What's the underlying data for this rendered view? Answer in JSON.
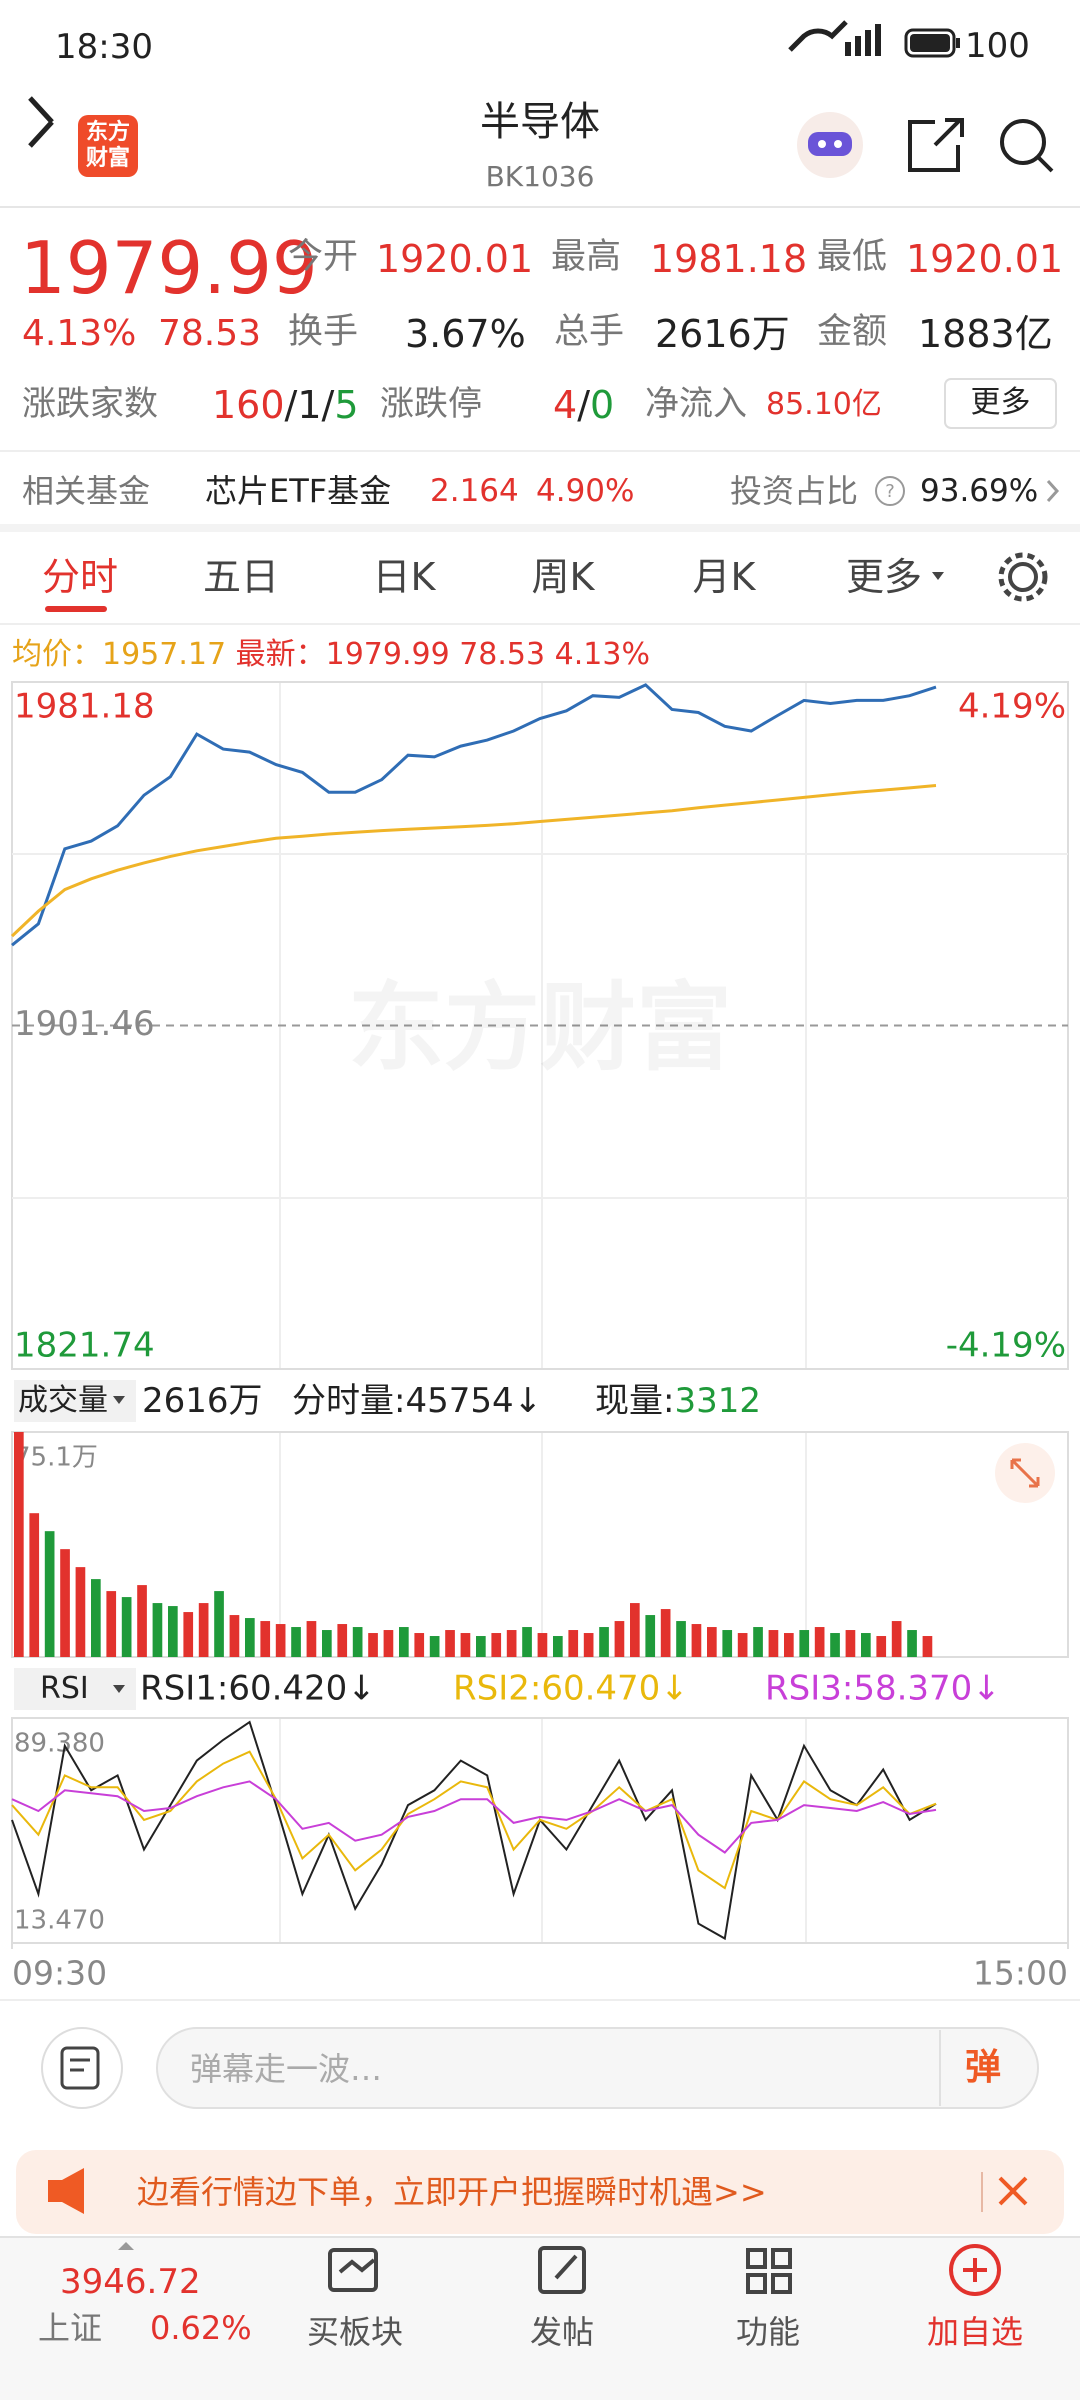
{
  "status": {
    "time": "18:30",
    "battery": "100"
  },
  "header": {
    "logo": [
      "东方",
      "财富"
    ],
    "title": "半导体",
    "code": "BK1036"
  },
  "quote": {
    "price": "1979.99",
    "change_pct": "4.13%",
    "change": "78.53",
    "fields": [
      {
        "label": "今开",
        "value": "1920.01"
      },
      {
        "label": "最高",
        "value": "1981.18"
      },
      {
        "label": "最低",
        "value": "1920.01"
      },
      {
        "label": "换手",
        "value": "3.67%"
      },
      {
        "label": "总手",
        "value": "2616万"
      },
      {
        "label": "金额",
        "value": "1883亿"
      }
    ]
  },
  "breadth": {
    "label": "涨跌家数",
    "up": "160",
    "sep": "/",
    "flat": "1",
    "down": "5",
    "limit_label": "涨跌停",
    "limit_up": "4",
    "limit_down": "0",
    "inflow_label": "净流入",
    "inflow": "85.10亿",
    "more": "更多"
  },
  "fund": {
    "label": "相关基金",
    "name": "芯片ETF基金",
    "price": "2.164",
    "pct": "4.90%",
    "ratio_label": "投资占比",
    "ratio": "93.69%"
  },
  "tabs": [
    "分时",
    "五日",
    "日K",
    "周K",
    "月K",
    "更多"
  ],
  "legend": {
    "avg_label": "均价：",
    "avg": "1957.17",
    "latest_label": "最新：",
    "latest": "1979.99",
    "change": "78.53",
    "pct": "4.13%"
  },
  "watermark": "东方财富",
  "volume_bar": {
    "selector": "成交量",
    "total": "2616万",
    "minute": "分时量:45754↓",
    "current_label": "现量:",
    "current": "3312"
  },
  "rsi_bar": {
    "selector": "RSI"
  },
  "chart_data": [
    {
      "type": "line",
      "xlim": [
        0,
        240
      ],
      "ylim": [
        1821.74,
        1981.18
      ],
      "yticks": [
        1821.74,
        1901.46,
        1981.18
      ],
      "y2lim": [
        -4.19,
        4.19
      ],
      "y2ticks": [
        {
          "value": -4.19,
          "label": "-4.19%"
        },
        {
          "value": 4.19,
          "label": "4.19%"
        }
      ],
      "x": [
        0,
        6,
        12,
        18,
        24,
        30,
        36,
        42,
        48,
        54,
        60,
        66,
        72,
        78,
        84,
        90,
        96,
        102,
        108,
        114,
        120,
        126,
        132,
        138,
        144,
        150,
        156,
        162,
        168,
        174,
        180,
        186,
        192,
        198,
        204,
        210
      ],
      "series": [
        {
          "color": "#2f6db5",
          "values": [
            1920.1,
            1925.07,
            1942.47,
            1944.25,
            1947.8,
            1954.9,
            1959.2,
            1969.1,
            1965.6,
            1964.9,
            1962,
            1960.2,
            1955.6,
            1955.6,
            1958.5,
            1964.2,
            1963.8,
            1966.3,
            1967.7,
            1969.8,
            1972.7,
            1974.5,
            1978,
            1977.6,
            1980.5,
            1974.8,
            1974.1,
            1970.9,
            1969.8,
            1973.4,
            1976.9,
            1976.2,
            1976.9,
            1976.9,
            1978,
            1979.99
          ]
        },
        {
          "color": "#f0b428",
          "values": [
            1922.2,
            1928,
            1933,
            1935.5,
            1937.5,
            1939.2,
            1940.7,
            1942,
            1943,
            1944,
            1944.9,
            1945.4,
            1945.9,
            1946.3,
            1946.7,
            1947,
            1947.3,
            1947.6,
            1947.9,
            1948.3,
            1948.8,
            1949.3,
            1949.8,
            1950.3,
            1950.8,
            1951.3,
            1952,
            1952.6,
            1953.2,
            1953.8,
            1954.4,
            1955,
            1955.6,
            1956.1,
            1956.6,
            1957.17
          ]
        }
      ]
    },
    {
      "type": "bar",
      "xlim": [
        0,
        240
      ],
      "ylim": [
        0,
        75.1
      ],
      "yticks": [
        {
          "value": 75.1,
          "label": "75.1万"
        }
      ],
      "x": [
        0,
        3.5,
        7,
        10.5,
        14,
        17.5,
        21,
        24.5,
        28,
        31.5,
        35,
        38.5,
        42,
        45.5,
        49,
        52.5,
        56,
        59.5,
        63,
        66.5,
        70,
        73.5,
        77,
        80.5,
        84,
        87.5,
        91,
        94.5,
        98,
        101.5,
        105,
        108.5,
        112,
        115.5,
        119,
        122.5,
        126,
        129.5,
        133,
        136.5,
        140,
        143.5,
        147,
        150.5,
        154,
        157.5,
        161,
        164.5,
        168,
        171.5,
        175,
        178.5,
        182,
        185.5,
        189,
        192.5,
        196,
        199.5,
        203,
        206.5
      ],
      "values": [
        75.1,
        48,
        42,
        36,
        30,
        26,
        22,
        20,
        24,
        18,
        17,
        15,
        18,
        22,
        14,
        13,
        12,
        11,
        10,
        12,
        9,
        11,
        10,
        8,
        9,
        10,
        8,
        7,
        9,
        8,
        7,
        8,
        9,
        10,
        8,
        7,
        9,
        8,
        10,
        12,
        18,
        14,
        16,
        12,
        11,
        10,
        9,
        8,
        10,
        9,
        8,
        9,
        10,
        8,
        9,
        8,
        7,
        12,
        9,
        7
      ],
      "up": [
        true,
        true,
        false,
        true,
        true,
        false,
        true,
        false,
        true,
        false,
        false,
        true,
        true,
        false,
        true,
        false,
        true,
        true,
        false,
        true,
        false,
        true,
        false,
        true,
        true,
        false,
        true,
        false,
        true,
        true,
        false,
        true,
        true,
        false,
        true,
        false,
        true,
        true,
        false,
        true,
        true,
        false,
        true,
        false,
        true,
        true,
        false,
        true,
        false,
        true,
        true,
        false,
        true,
        false,
        true,
        false,
        true,
        true,
        false,
        true
      ],
      "color_up": "#e2322d",
      "color_down": "#1f9a3a"
    },
    {
      "type": "line",
      "xlim": [
        0,
        240
      ],
      "xticks": [
        {
          "value": 0,
          "label": "09:30"
        },
        {
          "value": 240,
          "label": "15:00"
        }
      ],
      "ylim": [
        13.47,
        89.38
      ],
      "yticks": [
        {
          "value": 13.47,
          "label": "13.470"
        },
        {
          "value": 89.38,
          "label": "89.380"
        }
      ],
      "x": [
        0,
        6,
        12,
        18,
        24,
        30,
        36,
        42,
        48,
        54,
        60,
        66,
        72,
        78,
        84,
        90,
        96,
        102,
        108,
        114,
        120,
        126,
        132,
        138,
        144,
        150,
        156,
        162,
        168,
        174,
        180,
        186,
        192,
        198,
        204,
        210
      ],
      "series": [
        {
          "name": "RSI1:60.420↓",
          "color": "#222222",
          "values": [
            55,
            30,
            80,
            65,
            70,
            45,
            60,
            75,
            82,
            88,
            60,
            30,
            50,
            25,
            40,
            60,
            65,
            75,
            70,
            30,
            55,
            45,
            60,
            75,
            55,
            65,
            20,
            15,
            70,
            55,
            80,
            65,
            60,
            72,
            55,
            60.42
          ]
        },
        {
          "name": "RSI2:60.470↓",
          "color": "#e9b80c",
          "values": [
            60,
            50,
            70,
            66,
            66,
            55,
            58,
            68,
            74,
            78,
            62,
            42,
            50,
            38,
            45,
            57,
            62,
            68,
            66,
            45,
            55,
            52,
            58,
            66,
            58,
            62,
            38,
            32,
            58,
            55,
            68,
            62,
            60,
            66,
            57,
            60.47
          ]
        },
        {
          "name": "RSI3:58.370↓",
          "color": "#c83fd8",
          "values": [
            62,
            58,
            65,
            64,
            63,
            58,
            59,
            63,
            66,
            68,
            62,
            52,
            54,
            48,
            50,
            56,
            58,
            62,
            62,
            54,
            56,
            55,
            58,
            62,
            58,
            60,
            50,
            44,
            54,
            55,
            60,
            59,
            58,
            61,
            57,
            58.37
          ]
        }
      ]
    }
  ],
  "comment": {
    "placeholder": "弹幕走一波…",
    "button": "弹"
  },
  "ad": {
    "text": "边看行情边下单，立即开户把握瞬时机遇>>"
  },
  "nav": {
    "index_value": "3946.72",
    "index_name": "上证",
    "index_pct": "0.62%",
    "items": [
      "买板块",
      "发帖",
      "功能",
      "加自选"
    ]
  }
}
